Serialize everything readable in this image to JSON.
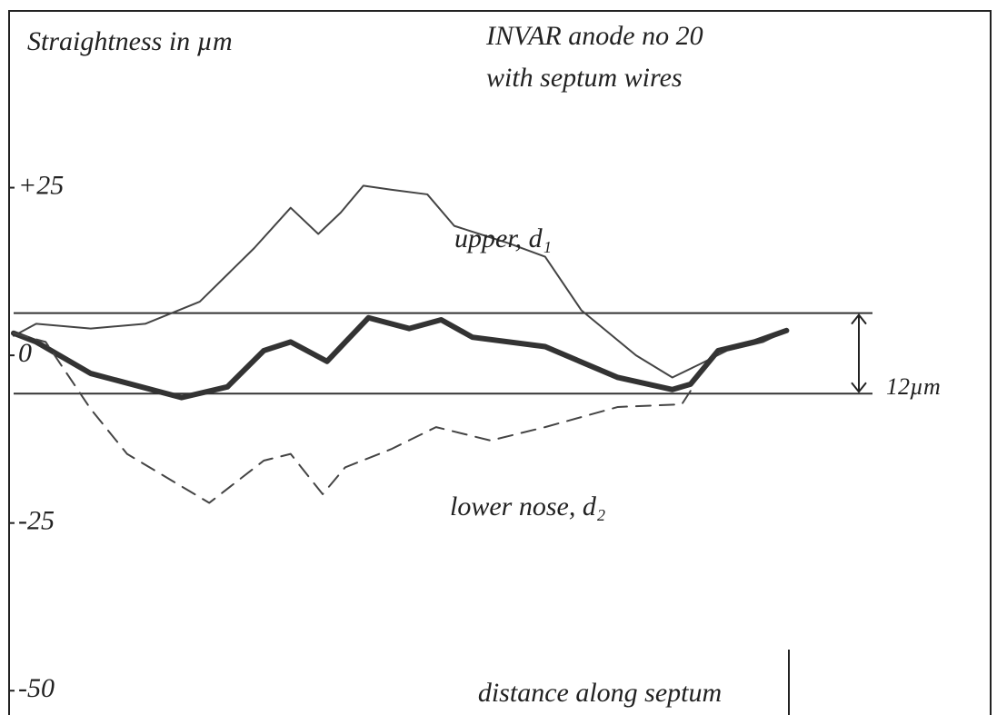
{
  "chart_data": {
    "type": "line",
    "title": "Straightness in µm",
    "subtitle": [
      "INVAR anode no 20",
      "with septum wires"
    ],
    "x_label": "distance along septum",
    "band_label": "12µm",
    "band": [
      6.3,
      -5.7
    ],
    "xlim": [
      0,
      135
    ],
    "ylim": [
      -52,
      50
    ],
    "yticks": [
      {
        "value": 25,
        "label": "+25"
      },
      0,
      -25,
      -50
    ],
    "series": [
      {
        "name": "upper, d₁",
        "color": "#444",
        "style": "thin",
        "x": [
          0,
          3.1,
          10.6,
          18.1,
          25.6,
          33.1,
          38.1,
          41.9,
          45,
          48.1,
          51.9,
          56.9,
          60.6,
          68.1,
          73.1,
          78.1,
          85.6,
          90.6,
          94.4,
          98.1,
          103.1,
          106.3
        ],
        "values": [
          2.9,
          4.7,
          4,
          4.7,
          8,
          16,
          22,
          18.1,
          21.3,
          25.3,
          24.7,
          24,
          19.3,
          16.7,
          14.7,
          6.7,
          0,
          -3.3,
          -1.3,
          0.7,
          2,
          3.7
        ]
      },
      {
        "color": "#333",
        "style": "thick",
        "x": [
          0,
          3.1,
          10.6,
          23.1,
          29.4,
          34.4,
          38.1,
          43.1,
          48.8,
          54.4,
          58.8,
          63.1,
          73.1,
          83.1,
          90.6,
          93.1,
          96.9,
          101.9,
          106.3
        ],
        "values": [
          3.3,
          2,
          -2.7,
          -6.3,
          -4.7,
          0.7,
          2,
          -0.9,
          5.6,
          4,
          5.3,
          2.7,
          1.3,
          -3.3,
          -5.1,
          -4.3,
          0.7,
          2,
          3.7
        ]
      },
      {
        "name": "lower nose, d₂",
        "color": "#444",
        "style": "dashed",
        "x": [
          0,
          4.4,
          10.6,
          15.6,
          26.9,
          34.4,
          38.1,
          42.5,
          45.6,
          51.9,
          58.1,
          65.6,
          73.1,
          83.1,
          91.9,
          93.1
        ],
        "values": [
          3.3,
          2,
          -8,
          -14.7,
          -22,
          -15.7,
          -14.7,
          -20.7,
          -16.7,
          -14,
          -10.7,
          -12.7,
          -10.7,
          -7.7,
          -7.3,
          -5.3
        ]
      }
    ]
  }
}
